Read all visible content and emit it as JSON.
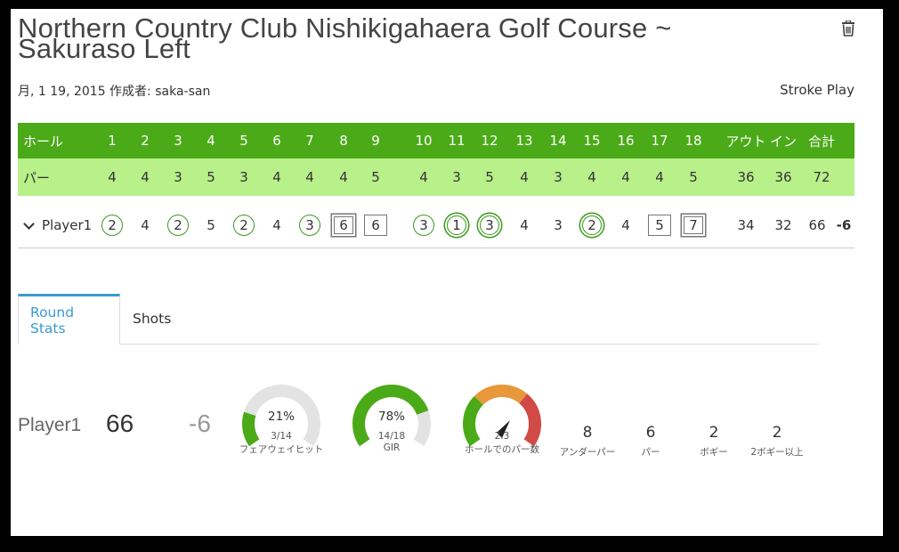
{
  "title": "Northern Country Club Nishikigahaera Golf Course ~ Sakuraso Left",
  "meta": "月, 1 19, 2015 作成者: saka-san",
  "mode": "Stroke Play",
  "icons": {
    "trash": "trash-icon",
    "chevron": "chevron-down-icon"
  },
  "colors": {
    "header_green": "#4aaa17",
    "par_green": "#b8f08a",
    "accent_blue": "#3a9ad0",
    "birdie_green": "#3a9a1a",
    "gauge_green": "#4aaa17",
    "gauge_gray": "#e3e3e3",
    "gauge_orange": "#e8973a",
    "gauge_red": "#d24a45"
  },
  "scorecard": {
    "hole_label": "ホール",
    "par_label": "パー",
    "holes": [
      "1",
      "2",
      "3",
      "4",
      "5",
      "6",
      "7",
      "8",
      "9",
      "10",
      "11",
      "12",
      "13",
      "14",
      "15",
      "16",
      "17",
      "18"
    ],
    "out_label": "アウト",
    "in_label": "イン",
    "total_label": "合計",
    "pars": [
      "4",
      "4",
      "3",
      "5",
      "3",
      "4",
      "4",
      "4",
      "5",
      "4",
      "3",
      "5",
      "4",
      "3",
      "4",
      "4",
      "4",
      "5"
    ],
    "par_out": "36",
    "par_in": "36",
    "par_total": "72",
    "player": {
      "name": "Player1",
      "scores": [
        "2",
        "4",
        "2",
        "5",
        "2",
        "4",
        "3",
        "6",
        "6",
        "3",
        "1",
        "3",
        "4",
        "3",
        "2",
        "4",
        "5",
        "7"
      ],
      "marks": [
        "circle",
        "none",
        "circle",
        "none",
        "circle",
        "none",
        "circle",
        "dsquare",
        "square",
        "circle",
        "dcircle",
        "dcircle",
        "none",
        "none",
        "dcircle",
        "none",
        "square",
        "dsquare"
      ],
      "out": "34",
      "in": "32",
      "total": "66",
      "to_par": "-6"
    }
  },
  "tabs": {
    "round_stats": "Round Stats",
    "shots": "Shots"
  },
  "stats": {
    "player": "Player1",
    "score": "66",
    "to_par": "-6",
    "fairway": {
      "pct": "21%",
      "frac": "3/14",
      "label": "フェアウェイヒット",
      "value": 0.21
    },
    "gir": {
      "pct": "78%",
      "frac": "14/18",
      "label": "GIR",
      "value": 0.78
    },
    "putts": {
      "value": "2.3",
      "label": "ホールでのパー数"
    },
    "counts": [
      {
        "n": "8",
        "label": "アンダーパー"
      },
      {
        "n": "6",
        "label": "パー"
      },
      {
        "n": "2",
        "label": "ボギー"
      },
      {
        "n": "2",
        "label": "2ボギー以上"
      }
    ]
  }
}
